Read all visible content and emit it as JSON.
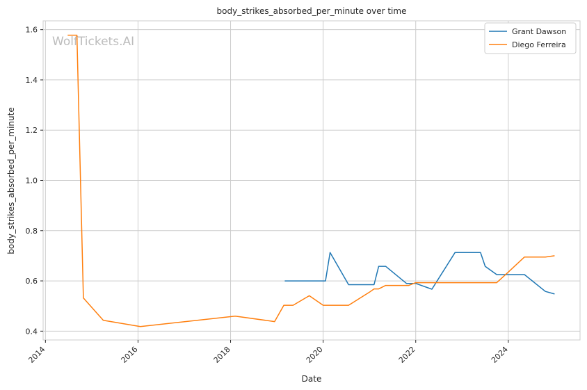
{
  "chart_data": {
    "type": "line",
    "title": "body_strikes_absorbed_per_minute over time",
    "xlabel": "Date",
    "ylabel": "body_strikes_absorbed_per_minute",
    "watermark": "WolfTickets.AI",
    "xlim": [
      2013.95,
      2025.55
    ],
    "ylim": [
      0.365,
      1.635
    ],
    "x_ticks": [
      2014,
      2016,
      2018,
      2020,
      2022,
      2024
    ],
    "x_tick_labels": [
      "2014",
      "2016",
      "2018",
      "2020",
      "2022",
      "2024"
    ],
    "y_ticks": [
      0.4,
      0.6,
      0.8,
      1.0,
      1.2,
      1.4,
      1.6
    ],
    "y_tick_labels": [
      "0.4",
      "0.6",
      "0.8",
      "1.0",
      "1.2",
      "1.4",
      "1.6"
    ],
    "grid": true,
    "legend_position": "top-right",
    "series": [
      {
        "name": "Grant Dawson",
        "color": "#1f77b4",
        "x": [
          2019.17,
          2020.05,
          2020.15,
          2020.55,
          2021.1,
          2021.2,
          2021.35,
          2021.8,
          2022.0,
          2022.35,
          2022.85,
          2023.1,
          2023.4,
          2023.5,
          2023.75,
          2024.0,
          2024.35,
          2024.8,
          2025.0
        ],
        "y": [
          0.6,
          0.6,
          0.713,
          0.585,
          0.585,
          0.658,
          0.658,
          0.59,
          0.59,
          0.567,
          0.713,
          0.713,
          0.713,
          0.658,
          0.625,
          0.625,
          0.625,
          0.558,
          0.548
        ]
      },
      {
        "name": "Diego Ferreira",
        "color": "#ff7f0e",
        "x": [
          2014.48,
          2014.6,
          2014.68,
          2014.82,
          2015.25,
          2016.05,
          2018.1,
          2018.95,
          2019.15,
          2019.35,
          2019.7,
          2020.0,
          2020.35,
          2020.55,
          2021.0,
          2021.1,
          2021.2,
          2021.35,
          2021.85,
          2022.0,
          2022.5,
          2023.0,
          2023.5,
          2023.75,
          2024.0,
          2024.35,
          2024.8,
          2025.0
        ],
        "y": [
          1.578,
          1.578,
          1.578,
          0.532,
          0.443,
          0.418,
          0.46,
          0.438,
          0.503,
          0.503,
          0.541,
          0.503,
          0.503,
          0.503,
          0.555,
          0.568,
          0.568,
          0.582,
          0.582,
          0.593,
          0.593,
          0.593,
          0.593,
          0.593,
          0.635,
          0.695,
          0.695,
          0.7
        ]
      }
    ]
  }
}
